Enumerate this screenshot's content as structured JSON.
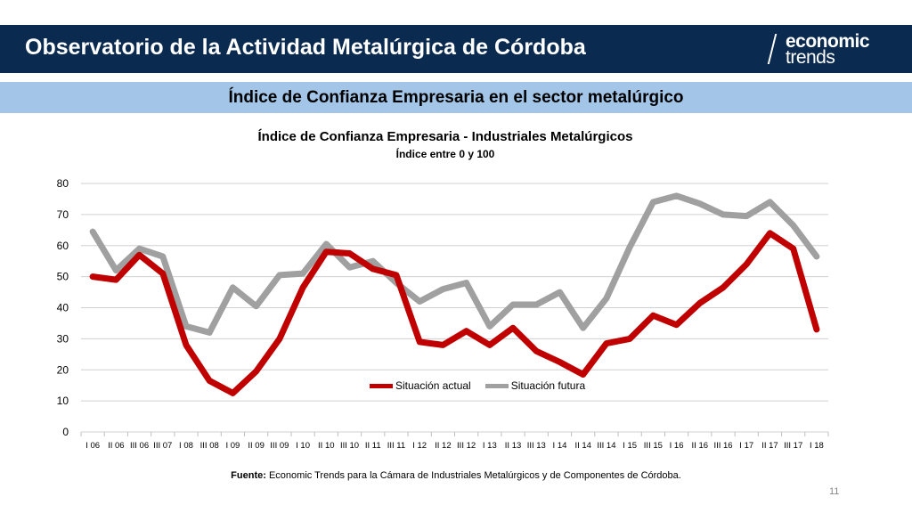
{
  "header": {
    "title": "Observatorio de la Actividad Metalúrgica de Córdoba"
  },
  "logo": {
    "line1": "economic",
    "line2": "trends"
  },
  "band": {
    "title": "Índice de Confianza Empresaria en el sector metalúrgico"
  },
  "chart_data": {
    "type": "line",
    "title": "Índice de Confianza Empresaria - Industriales Metalúrgicos",
    "subtitle": "Índice entre 0 y 100",
    "xlabel": "",
    "ylabel": "",
    "ylim": [
      0,
      80
    ],
    "yticks": [
      0,
      10,
      20,
      30,
      40,
      50,
      60,
      70,
      80
    ],
    "grid": true,
    "legend_position": "bottom-inside",
    "categories": [
      "I 06",
      "II 06",
      "III 06",
      "III 07",
      "I 08",
      "III 08",
      "I 09",
      "II 09",
      "III 09",
      "I 10",
      "II 10",
      "III 10",
      "II 11",
      "III 11",
      "I 12",
      "II 12",
      "III 12",
      "I 13",
      "II 13",
      "III 13",
      "I 14",
      "II 14",
      "III 14",
      "I 15",
      "III 15",
      "I 16",
      "II 16",
      "III 16",
      "I 17",
      "II 17",
      "III 17",
      "I 18"
    ],
    "series": [
      {
        "name": "Situación actual",
        "color": "#c00000",
        "values": [
          50,
          49,
          57,
          51,
          28,
          16.5,
          12.5,
          19.5,
          30,
          46.5,
          58,
          57.5,
          52.5,
          50.5,
          29,
          28,
          32.5,
          28,
          33.5,
          26,
          22.5,
          18.5,
          28.5,
          30,
          37.5,
          34.5,
          41.5,
          46.5,
          54,
          64,
          59,
          33
        ]
      },
      {
        "name": "Situación futura",
        "color": "#a0a0a0",
        "values": [
          64.5,
          52,
          59,
          56.5,
          34,
          32,
          46.5,
          40.5,
          50.5,
          51,
          60.5,
          53,
          55,
          48,
          42,
          46,
          48,
          34,
          41,
          41,
          45,
          33.5,
          43,
          59.5,
          74,
          76,
          73.5,
          70,
          69.5,
          74,
          66.5,
          56.5
        ]
      }
    ]
  },
  "source": {
    "label": "Fuente:",
    "text": "Economic Trends para la Cámara de Industriales Metalúrgicos y de Componentes de Córdoba."
  },
  "page_number": "11"
}
